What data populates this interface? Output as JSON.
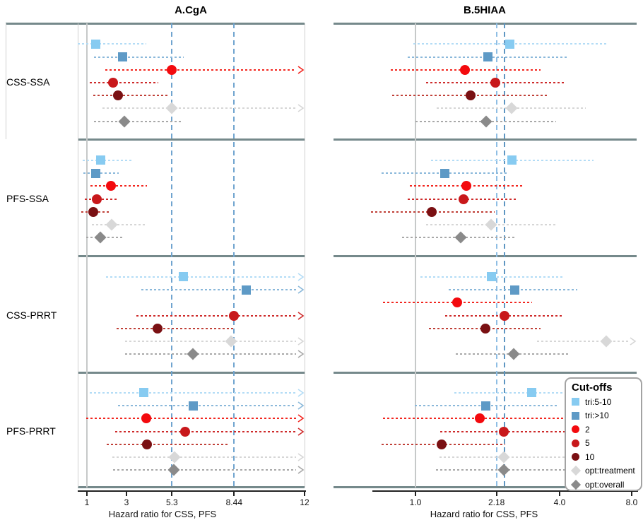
{
  "legend": {
    "title": "Cut-offs"
  },
  "cutoffs": [
    {
      "id": "tri:5-10",
      "label": "tri:5-10",
      "shape": "square",
      "color": "#87CBF1",
      "ci_color": "#B3DCF6"
    },
    {
      "id": "tri:>10",
      "label": "tri:>10",
      "shape": "square",
      "color": "#5E9AC6",
      "ci_color": "#8AB8DA"
    },
    {
      "id": "2",
      "label": "2",
      "shape": "circle",
      "color": "#F30A0E",
      "ci_color": "#F2261F"
    },
    {
      "id": "5",
      "label": "5",
      "shape": "circle",
      "color": "#C8181B",
      "ci_color": "#CE2B2B"
    },
    {
      "id": "10",
      "label": "10",
      "shape": "circle",
      "color": "#7A1013",
      "ci_color": "#C04038"
    },
    {
      "id": "opt:treatment",
      "label": "opt:treatment",
      "shape": "diamond",
      "color": "#D8D8D8",
      "ci_color": "#D6D6D6"
    },
    {
      "id": "opt:overall",
      "label": "opt:overall",
      "shape": "diamond",
      "color": "#8A8A8A",
      "ci_color": "#A8A8A8"
    }
  ],
  "chart_data": [
    {
      "type": "scatter",
      "subtype": "forest-plot",
      "title": "A.CgA",
      "xlabel": "Hazard ratio for CSS, PFS",
      "xscale": "linear",
      "xlim": [
        1,
        12
      ],
      "xticks": [
        1,
        3,
        5.3,
        8.44,
        12
      ],
      "xtick_labels": [
        "1",
        "3",
        "5.3",
        "8.44",
        "12"
      ],
      "ref_lines": [
        5.3,
        8.44
      ],
      "null_line": 1,
      "groups": [
        {
          "label": "CSS-SSA",
          "rows": [
            {
              "cutoff": "tri:5-10",
              "hr": 1.43,
              "ci": [
                0.55,
                4.0
              ],
              "arrow": false
            },
            {
              "cutoff": "tri:>10",
              "hr": 2.79,
              "ci": [
                1.35,
                5.9
              ],
              "arrow": false
            },
            {
              "cutoff": "2",
              "hr": 5.3,
              "ci": [
                1.93,
                12
              ],
              "arrow": true
            },
            {
              "cutoff": "5",
              "hr": 2.32,
              "ci": [
                1.14,
                4.6
              ],
              "arrow": false
            },
            {
              "cutoff": "10",
              "hr": 2.57,
              "ci": [
                1.32,
                5.07
              ],
              "arrow": false
            },
            {
              "cutoff": "opt:treatment",
              "hr": 5.3,
              "ci": [
                1.8,
                12
              ],
              "arrow": true
            },
            {
              "cutoff": "opt:overall",
              "hr": 2.89,
              "ci": [
                1.36,
                5.79
              ],
              "arrow": false
            }
          ]
        },
        {
          "label": "PFS-SSA",
          "rows": [
            {
              "cutoff": "tri:5-10",
              "hr": 1.68,
              "ci": [
                0.79,
                3.32
              ],
              "arrow": false
            },
            {
              "cutoff": "tri:>10",
              "hr": 1.46,
              "ci": [
                0.82,
                2.6
              ],
              "arrow": false
            },
            {
              "cutoff": "2",
              "hr": 2.21,
              "ci": [
                1.18,
                4.04
              ],
              "arrow": false
            },
            {
              "cutoff": "5",
              "hr": 1.5,
              "ci": [
                0.89,
                2.5
              ],
              "arrow": false
            },
            {
              "cutoff": "10",
              "hr": 1.32,
              "ci": [
                0.71,
                2.21
              ],
              "arrow": false
            },
            {
              "cutoff": "opt:treatment",
              "hr": 2.25,
              "ci": [
                1.25,
                4.0
              ],
              "arrow": false
            },
            {
              "cutoff": "opt:overall",
              "hr": 1.68,
              "ci": [
                0.96,
                2.79
              ],
              "arrow": false
            }
          ]
        },
        {
          "label": "CSS-PRRT",
          "rows": [
            {
              "cutoff": "tri:5-10",
              "hr": 5.89,
              "ci": [
                1.96,
                12
              ],
              "arrow": true
            },
            {
              "cutoff": "tri:>10",
              "hr": 9.04,
              "ci": [
                3.75,
                12
              ],
              "arrow": true
            },
            {
              "cutoff": "5",
              "hr": 8.44,
              "ci": [
                3.5,
                12
              ],
              "arrow": true
            },
            {
              "cutoff": "10",
              "hr": 4.57,
              "ci": [
                2.5,
                8.4
              ],
              "arrow": false
            },
            {
              "cutoff": "opt:treatment",
              "hr": 8.29,
              "ci": [
                2.93,
                12
              ],
              "arrow": true
            },
            {
              "cutoff": "opt:overall",
              "hr": 6.36,
              "ci": [
                2.93,
                12
              ],
              "arrow": true
            }
          ]
        },
        {
          "label": "PFS-PRRT",
          "rows": [
            {
              "cutoff": "tri:5-10",
              "hr": 3.86,
              "ci": [
                1.14,
                12
              ],
              "arrow": true
            },
            {
              "cutoff": "tri:>10",
              "hr": 6.36,
              "ci": [
                2.57,
                12
              ],
              "arrow": true
            },
            {
              "cutoff": "2",
              "hr": 4.0,
              "ci": [
                0.96,
                12
              ],
              "arrow": true
            },
            {
              "cutoff": "5",
              "hr": 5.96,
              "ci": [
                2.43,
                12
              ],
              "arrow": true
            },
            {
              "cutoff": "10",
              "hr": 4.04,
              "ci": [
                2.0,
                8.21
              ],
              "arrow": false
            },
            {
              "cutoff": "opt:treatment",
              "hr": 5.43,
              "ci": [
                2.29,
                12
              ],
              "arrow": true
            },
            {
              "cutoff": "opt:overall",
              "hr": 5.39,
              "ci": [
                2.32,
                12
              ],
              "arrow": true
            }
          ]
        }
      ]
    },
    {
      "type": "scatter",
      "subtype": "forest-plot",
      "title": "B.5HIAA",
      "xlabel": "Hazard ratio for CSS, PFS",
      "xscale": "log2",
      "xlim": [
        1,
        8
      ],
      "xticks": [
        1.0,
        2.18,
        4.0,
        8.0
      ],
      "xtick_labels": [
        "1.0",
        "2.18",
        "4.0",
        "8.0"
      ],
      "ref_lines": [
        2.18,
        2.35
      ],
      "null_line": 1,
      "groups": [
        {
          "label": "CSS-SSA",
          "rows": [
            {
              "cutoff": "tri:5-10",
              "hr": 2.47,
              "ci": [
                0.98,
                6.3
              ],
              "arrow": false
            },
            {
              "cutoff": "tri:>10",
              "hr": 2.01,
              "ci": [
                0.93,
                4.37
              ],
              "arrow": false
            },
            {
              "cutoff": "2",
              "hr": 1.61,
              "ci": [
                0.79,
                3.33
              ],
              "arrow": false
            },
            {
              "cutoff": "5",
              "hr": 2.15,
              "ci": [
                1.11,
                4.22
              ],
              "arrow": false
            },
            {
              "cutoff": "10",
              "hr": 1.7,
              "ci": [
                0.8,
                3.57
              ],
              "arrow": false
            },
            {
              "cutoff": "opt:treatment",
              "hr": 2.52,
              "ci": [
                1.23,
                5.14
              ],
              "arrow": false
            },
            {
              "cutoff": "opt:overall",
              "hr": 1.97,
              "ci": [
                1.0,
                3.87
              ],
              "arrow": false
            }
          ]
        },
        {
          "label": "PFS-SSA",
          "rows": [
            {
              "cutoff": "tri:5-10",
              "hr": 2.52,
              "ci": [
                1.16,
                5.55
              ],
              "arrow": false
            },
            {
              "cutoff": "tri:>10",
              "hr": 1.33,
              "ci": [
                0.72,
                2.45
              ],
              "arrow": false
            },
            {
              "cutoff": "2",
              "hr": 1.63,
              "ci": [
                0.95,
                2.81
              ],
              "arrow": false
            },
            {
              "cutoff": "5",
              "hr": 1.59,
              "ci": [
                0.93,
                2.68
              ],
              "arrow": false
            },
            {
              "cutoff": "10",
              "hr": 1.17,
              "ci": [
                0.65,
                2.14
              ],
              "arrow": false
            },
            {
              "cutoff": "opt:treatment",
              "hr": 2.07,
              "ci": [
                1.11,
                3.92
              ],
              "arrow": false
            },
            {
              "cutoff": "opt:overall",
              "hr": 1.54,
              "ci": [
                0.88,
                2.59
              ],
              "arrow": false
            }
          ]
        },
        {
          "label": "CSS-PRRT",
          "rows": [
            {
              "cutoff": "tri:5-10",
              "hr": 2.07,
              "ci": [
                1.05,
                4.14
              ],
              "arrow": false
            },
            {
              "cutoff": "tri:>10",
              "hr": 2.59,
              "ci": [
                1.38,
                4.74
              ],
              "arrow": false
            },
            {
              "cutoff": "2",
              "hr": 1.49,
              "ci": [
                0.73,
                3.07
              ],
              "arrow": false
            },
            {
              "cutoff": "5",
              "hr": 2.36,
              "ci": [
                1.33,
                4.08
              ],
              "arrow": false
            },
            {
              "cutoff": "10",
              "hr": 1.96,
              "ci": [
                1.14,
                3.33
              ],
              "arrow": false
            },
            {
              "cutoff": "opt:treatment",
              "hr": 6.26,
              "ci": [
                3.22,
                8.0
              ],
              "arrow": true
            },
            {
              "cutoff": "opt:overall",
              "hr": 2.57,
              "ci": [
                1.47,
                4.37
              ],
              "arrow": false
            }
          ]
        },
        {
          "label": "PFS-PRRT",
          "rows": [
            {
              "cutoff": "tri:5-10",
              "hr": 3.05,
              "ci": [
                1.45,
                7.3
              ],
              "arrow": false
            },
            {
              "cutoff": "tri:>10",
              "hr": 1.97,
              "ci": [
                0.99,
                3.95
              ],
              "arrow": false
            },
            {
              "cutoff": "2",
              "hr": 1.86,
              "ci": [
                0.73,
                4.2
              ],
              "arrow": false
            },
            {
              "cutoff": "5",
              "hr": 2.34,
              "ci": [
                1.27,
                4.2
              ],
              "arrow": false
            },
            {
              "cutoff": "10",
              "hr": 1.29,
              "ci": [
                0.72,
                2.37
              ],
              "arrow": false
            },
            {
              "cutoff": "opt:treatment",
              "hr": 2.34,
              "ci": [
                1.26,
                7.3
              ],
              "arrow": false
            },
            {
              "cutoff": "opt:overall",
              "hr": 2.34,
              "ci": [
                1.22,
                7.3
              ],
              "arrow": false
            }
          ]
        }
      ]
    }
  ]
}
